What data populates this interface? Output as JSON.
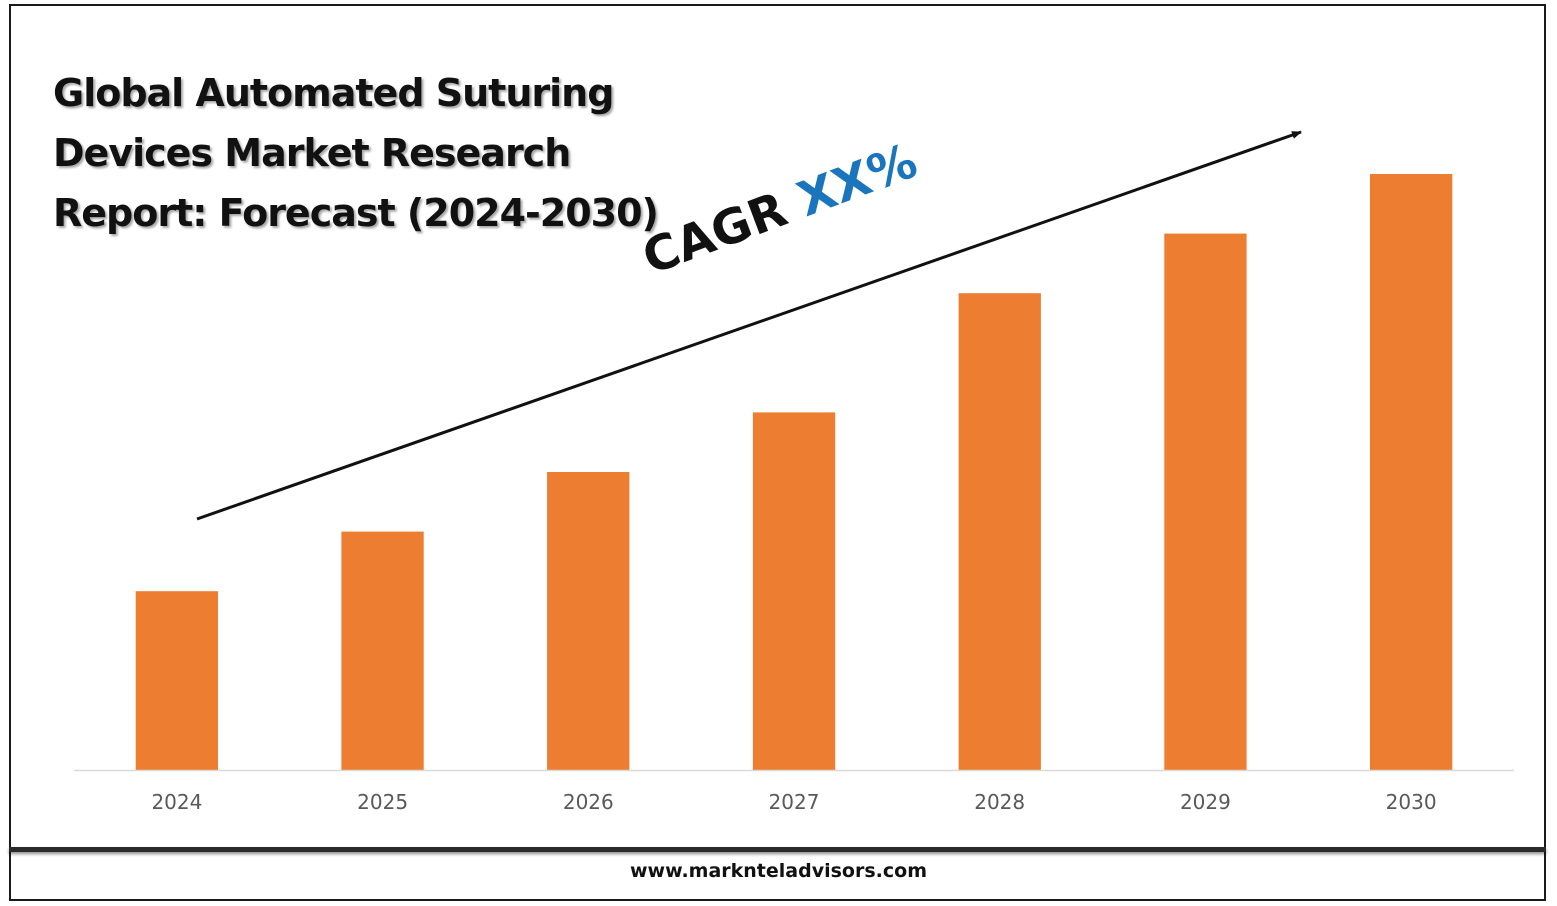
{
  "title_lines": [
    "Global Automated Suturing",
    "Devices Market Research",
    "Report: Forecast (2024-2030)"
  ],
  "cagr": {
    "label": "CAGR",
    "value": "XX%"
  },
  "footer": {
    "url": "www.marknteladvisors.com"
  },
  "colors": {
    "bar": "#ED7D31",
    "cagr_value": "#1B75BC",
    "axis": "#D9D9D9",
    "tick_text": "#595959"
  },
  "chart_data": {
    "type": "bar",
    "title": "Global Automated Suturing Devices Market Research Report: Forecast (2024-2030)",
    "categories": [
      "2024",
      "2025",
      "2026",
      "2027",
      "2028",
      "2029",
      "2030"
    ],
    "values": [
      30,
      40,
      50,
      60,
      80,
      90,
      100
    ],
    "ylim": [
      0,
      100
    ],
    "xlabel": "",
    "ylabel": "",
    "grid": false,
    "legend": "none"
  }
}
